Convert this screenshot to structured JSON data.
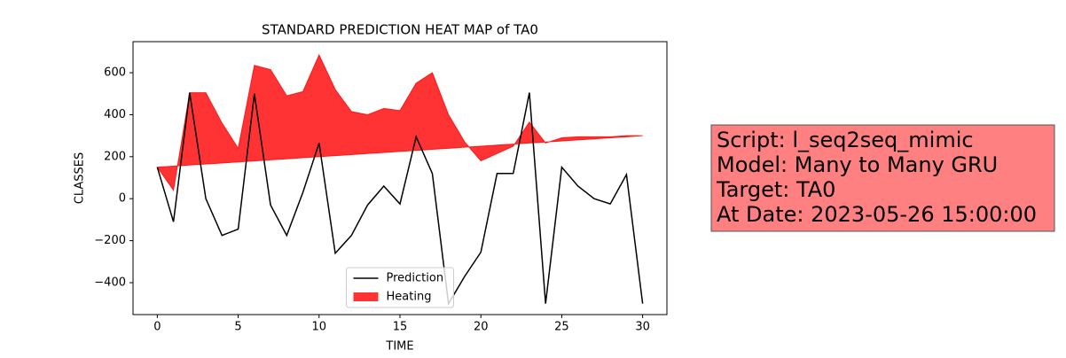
{
  "chart_data": {
    "type": "line",
    "title": "STANDARD PREDICTION HEAT MAP of TA0",
    "xlabel": "TIME",
    "ylabel": "CLASSES",
    "x": [
      0,
      1,
      2,
      3,
      4,
      5,
      6,
      7,
      8,
      9,
      10,
      11,
      12,
      13,
      14,
      15,
      16,
      17,
      18,
      19,
      20,
      21,
      22,
      23,
      24,
      25,
      26,
      27,
      28,
      29,
      30
    ],
    "series": [
      {
        "name": "Prediction",
        "color": "#000000",
        "values": [
          150,
          -110,
          505,
          0,
          -175,
          -145,
          500,
          -30,
          -175,
          30,
          265,
          -260,
          -175,
          -30,
          60,
          -25,
          295,
          120,
          -500,
          -370,
          -255,
          120,
          120,
          505,
          -500,
          150,
          60,
          0,
          -25,
          115,
          -500
        ]
      }
    ],
    "fill_between": {
      "name": "Heating",
      "color": "#ff0000",
      "y1": [
        150,
        40,
        505,
        505,
        360,
        240,
        635,
        615,
        490,
        510,
        685,
        520,
        415,
        400,
        430,
        420,
        550,
        600,
        400,
        270,
        180,
        215,
        250,
        365,
        265,
        290,
        295,
        295,
        295,
        300,
        300
      ],
      "y2": [
        150,
        155,
        160,
        165,
        170,
        175,
        180,
        185,
        190,
        195,
        200,
        205,
        210,
        215,
        220,
        225,
        230,
        235,
        240,
        245,
        250,
        255,
        260,
        265,
        270,
        275,
        280,
        285,
        290,
        295,
        300
      ]
    },
    "xlim": [
      -1.5,
      31.5
    ],
    "ylim": [
      -552,
      748
    ],
    "xticks": [
      0,
      5,
      10,
      15,
      20,
      25,
      30
    ],
    "yticks": [
      {
        "value": -400,
        "label": "−400"
      },
      {
        "value": -200,
        "label": "−200"
      },
      0,
      200,
      400,
      600
    ],
    "legend": "lower center"
  },
  "text_box": {
    "lines": [
      "Script: l_seq2seq_mimic",
      "Model: Many to Many GRU",
      "Target: TA0",
      "At Date: 2023-05-26 15:00:00"
    ]
  }
}
